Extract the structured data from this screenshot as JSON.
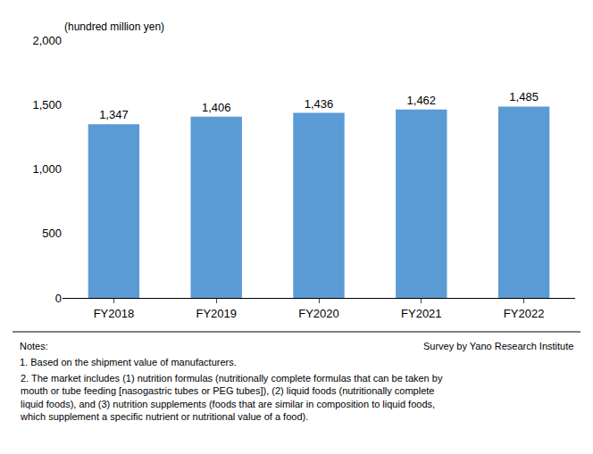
{
  "chart_data": {
    "type": "bar",
    "categories": [
      "FY2018",
      "FY2019",
      "FY2020",
      "FY2021",
      "FY2022"
    ],
    "values": [
      1347,
      1406,
      1436,
      1462,
      1485
    ],
    "value_labels": [
      "1,347",
      "1,406",
      "1,436",
      "1,462",
      "1,485"
    ],
    "data_labels": true,
    "color": "#5b9bd5",
    "ylabel": "(hundred million yen)",
    "ylim": [
      0,
      2000
    ],
    "yticks": [
      0,
      500,
      {
        "value": 1000,
        "label": "1,000"
      },
      {
        "value": 1500,
        "label": "1,500"
      },
      {
        "value": 2000,
        "label": "2,000"
      }
    ],
    "grid": false,
    "annotations": [
      "Notes:",
      "Survey by Yano Research Institute",
      "1. Based on the shipment value of manufacturers.",
      "2. The market includes (1) nutrition formulas (nutritionally complete formulas that can be taken by\nmouth or tube feeding [nasogastric tubes or PEG tubes]), (2) liquid foods (nutritionally complete\nliquid foods), and (3) nutrition supplements (foods that are similar in composition to liquid foods,\nwhich supplement a specific nutrient or nutritional value of a food)."
    ]
  }
}
